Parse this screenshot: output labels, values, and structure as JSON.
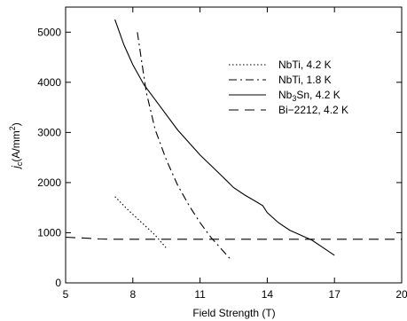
{
  "chart_data": {
    "type": "line",
    "xlabel": "Field Strength  (T)",
    "ylabel": {
      "main": "j",
      "sub": "c",
      "rest": "(A/mm",
      "sup": "2",
      "close": ")"
    },
    "xlim": [
      5,
      20
    ],
    "ylim": [
      0,
      5500
    ],
    "xticks": [
      5,
      8,
      11,
      14,
      17,
      20
    ],
    "yticks": [
      0,
      1000,
      2000,
      3000,
      4000,
      5000
    ],
    "grid": false,
    "legend_position": "top-right",
    "series": [
      {
        "name": "NbTi, 4.2 K",
        "legend_parts": [
          "NbTi, 4.2 K"
        ],
        "style": "dotted",
        "points": [
          [
            7.2,
            1720
          ],
          [
            7.8,
            1450
          ],
          [
            8.4,
            1200
          ],
          [
            9.0,
            950
          ],
          [
            9.5,
            690
          ]
        ]
      },
      {
        "name": "NbTi, 1.8 K",
        "legend_parts": [
          "NbTi, 1.8 K"
        ],
        "style": "dashdot",
        "points": [
          [
            8.2,
            5000
          ],
          [
            8.4,
            4400
          ],
          [
            8.6,
            3800
          ],
          [
            9.0,
            3050
          ],
          [
            9.5,
            2450
          ],
          [
            10.0,
            1950
          ],
          [
            10.5,
            1550
          ],
          [
            11.0,
            1200
          ],
          [
            11.5,
            900
          ],
          [
            12.0,
            650
          ],
          [
            12.4,
            450
          ]
        ]
      },
      {
        "name": "Nb3Sn, 4.2 K",
        "legend_parts": [
          "Nb",
          "3",
          "Sn, 4.2 K"
        ],
        "style": "solid",
        "points": [
          [
            7.2,
            5250
          ],
          [
            7.6,
            4750
          ],
          [
            8.0,
            4350
          ],
          [
            8.5,
            3950
          ],
          [
            9.0,
            3650
          ],
          [
            10.0,
            3050
          ],
          [
            11.0,
            2550
          ],
          [
            12.0,
            2120
          ],
          [
            12.5,
            1900
          ],
          [
            13.0,
            1750
          ],
          [
            13.5,
            1620
          ],
          [
            13.8,
            1540
          ],
          [
            14.0,
            1400
          ],
          [
            14.5,
            1200
          ],
          [
            15.0,
            1050
          ],
          [
            15.5,
            950
          ],
          [
            16.0,
            850
          ],
          [
            16.5,
            700
          ],
          [
            17.0,
            550
          ]
        ]
      },
      {
        "name": "Bi-2212, 4.2 K",
        "legend_parts": [
          "Bi−2212, 4.2 K"
        ],
        "style": "dashed",
        "points": [
          [
            5.0,
            910
          ],
          [
            5.5,
            900
          ],
          [
            6.0,
            890
          ],
          [
            6.5,
            875
          ],
          [
            7.0,
            870
          ],
          [
            8.0,
            870
          ],
          [
            10.0,
            870
          ],
          [
            12.0,
            870
          ],
          [
            14.0,
            870
          ],
          [
            16.0,
            870
          ],
          [
            18.0,
            870
          ],
          [
            20.0,
            870
          ]
        ]
      }
    ]
  }
}
